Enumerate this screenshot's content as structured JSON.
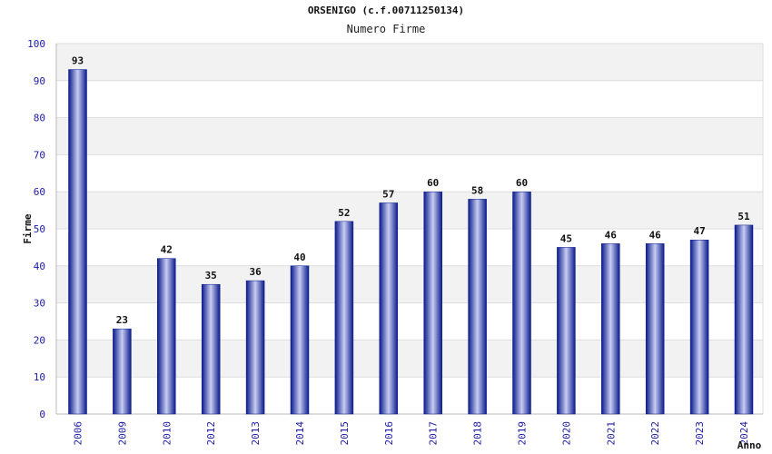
{
  "chart_data": {
    "type": "bar",
    "title": "ORSENIGO (c.f.00711250134)",
    "subtitle": "Numero Firme",
    "xlabel": "Anno",
    "ylabel": "Firme",
    "ylim": [
      0,
      100
    ],
    "yticks": [
      0,
      10,
      20,
      30,
      40,
      50,
      60,
      70,
      80,
      90,
      100
    ],
    "grid": true,
    "categories": [
      "2006",
      "2009",
      "2010",
      "2012",
      "2013",
      "2014",
      "2015",
      "2016",
      "2017",
      "2018",
      "2019",
      "2020",
      "2021",
      "2022",
      "2023",
      "2024"
    ],
    "values": [
      93,
      23,
      42,
      35,
      36,
      40,
      52,
      57,
      60,
      58,
      60,
      45,
      46,
      46,
      47,
      51
    ],
    "colors": {
      "bar_dark": "#0a1a8c",
      "bar_light": "#c8cdf2",
      "band": "#f2f2f2",
      "grid": "#dddddd",
      "tick": "#1a1aa6"
    }
  }
}
